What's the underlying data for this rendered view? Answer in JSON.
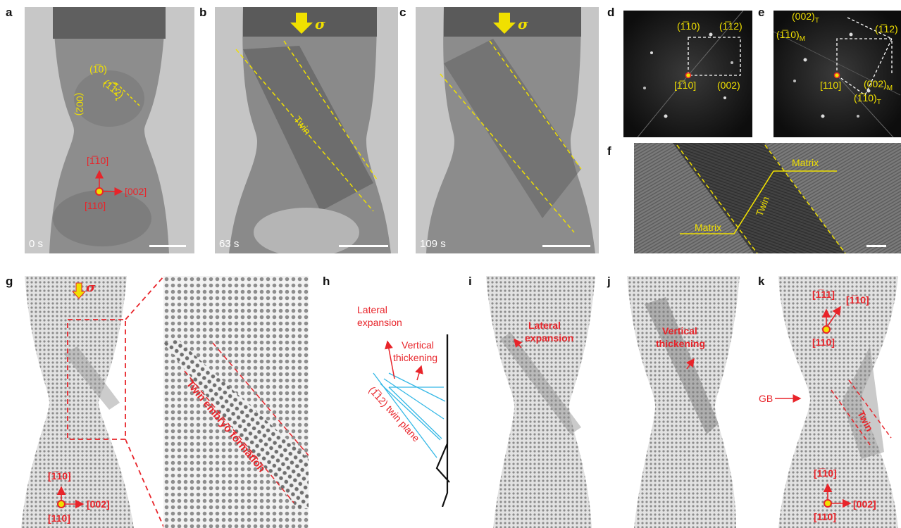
{
  "panels": {
    "a": {
      "label": "a",
      "time": "0 s",
      "dir_110bar": "(1̅0)",
      "dir_112bar": "(1̅12)",
      "dir_002": "(002)",
      "axis_up": "[1̅10]",
      "axis_right": "[002]",
      "axis_origin": "[110]"
    },
    "b": {
      "label": "b",
      "time": "63 s",
      "sigma": "σ",
      "twin": "Twin"
    },
    "c": {
      "label": "c",
      "time": "109 s",
      "sigma": "σ"
    },
    "d": {
      "label": "d",
      "spot_110bar": "(1̅10)",
      "spot_112bar": "(1̅12)",
      "zone": "[1̅10]",
      "spot_002": "(002)"
    },
    "e": {
      "label": "e",
      "spot_002T": "(002)",
      "sub_T": "T",
      "spot_110M": "(1̅10)",
      "sub_M": "M",
      "spot_112": "(1̅12)",
      "zone": "[110]",
      "spot_002M": "(002)",
      "spot_110T": "(1̅10)"
    },
    "f": {
      "label": "f",
      "matrix_top": "Matrix",
      "matrix_bottom": "Matrix",
      "twin": "Twin"
    },
    "g": {
      "label": "g",
      "sigma": "σ",
      "embryo": "Twin embryo formation",
      "axis_up": "[1̅10]",
      "axis_right": "[002]",
      "axis_origin": "[110]"
    },
    "h": {
      "label": "h",
      "lateral": "Lateral",
      "expansion": "expansion",
      "vertical": "Vertical",
      "thickening": "thickening",
      "twin_plane": "(1̅12) twin plane"
    },
    "i": {
      "label": "i",
      "lateral": "Lateral",
      "expansion": "expansion"
    },
    "j": {
      "label": "j",
      "vertical": "Vertical",
      "thickening": "thickening"
    },
    "k": {
      "label": "k",
      "dir_111": "[1̅11]",
      "dir_110bar": "[1̅10]",
      "origin_top": "[110]",
      "gb": "GB",
      "twin": "Twin",
      "axis_up": "[1̅10]",
      "axis_right": "[002]",
      "axis_origin": "[110]"
    }
  },
  "colors": {
    "yellow": "#f0e000",
    "red": "#e8242a",
    "cyan": "#35b8e6"
  }
}
